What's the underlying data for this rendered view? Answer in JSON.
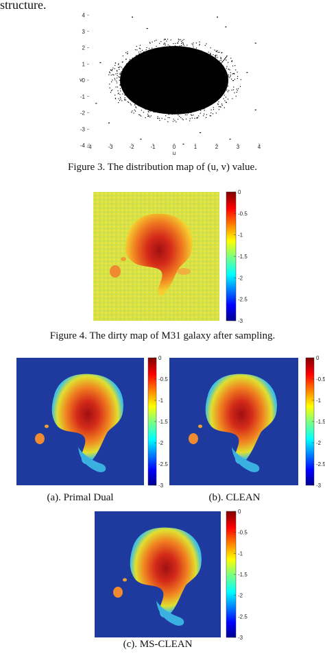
{
  "page": {
    "top_text": "structure.",
    "figure3": {
      "caption": "Figure 3.    The distribution map of (u, v) value.",
      "xlabel": "u",
      "ylabel": "v",
      "x_ticks": [
        "-4",
        "-3",
        "-2",
        "-1",
        "0",
        "1",
        "2",
        "3",
        "4"
      ],
      "y_ticks": [
        "4",
        "3",
        "2",
        "1",
        "0",
        "-1",
        "-2",
        "-3",
        "-4"
      ]
    },
    "figure4": {
      "caption": "Figure 4.    The dirty map of M31 galaxy after sampling.",
      "colorbar_ticks": [
        "0",
        "-0.5",
        "-1",
        "-1.5",
        "-2",
        "-2.5",
        "-3"
      ]
    },
    "figure5": {
      "panels": [
        {
          "caption": "(a). Primal Dual",
          "colorbar_ticks": [
            "0",
            "-0.5",
            "-1",
            "-1.5",
            "-2",
            "-2.5",
            "-3"
          ]
        },
        {
          "caption": "(b). CLEAN",
          "colorbar_ticks": [
            "0",
            "-0.5",
            "-1",
            "-1.5",
            "-2",
            "-2.5",
            "-3"
          ]
        },
        {
          "caption": "(c). MS-CLEAN",
          "colorbar_ticks": [
            "0",
            "-0.5",
            "-1",
            "-1.5",
            "-2",
            "-2.5",
            "-3"
          ]
        }
      ]
    }
  },
  "chart_data": {
    "type": "scatter",
    "title": "",
    "xlabel": "u",
    "ylabel": "v",
    "xlim": [
      -4,
      4
    ],
    "ylim": [
      -4,
      4
    ],
    "x_ticks": [
      -4,
      -3,
      -2,
      -1,
      0,
      1,
      2,
      3,
      4
    ],
    "y_ticks": [
      -4,
      -3,
      -2,
      -1,
      0,
      1,
      2,
      3,
      4
    ],
    "distribution": "dense elliptical cloud of (u, v) points centred at (0, 0), radius about 2.5 in u and 2 in v, with sparse outliers",
    "outliers": [
      [
        -2,
        3.9
      ],
      [
        2,
        3.9
      ],
      [
        -1.3,
        3.2
      ],
      [
        2.4,
        3.3
      ],
      [
        3.8,
        2.3
      ],
      [
        -3.5,
        1.1
      ],
      [
        3.4,
        0.5
      ],
      [
        -3.7,
        -1.4
      ],
      [
        3.8,
        -1.8
      ],
      [
        -3.1,
        -2.6
      ],
      [
        1.2,
        -3.2
      ],
      [
        2.6,
        -3.6
      ],
      [
        -1.6,
        -3.6
      ],
      [
        0.4,
        -3.9
      ]
    ],
    "point_color": "#000000"
  }
}
